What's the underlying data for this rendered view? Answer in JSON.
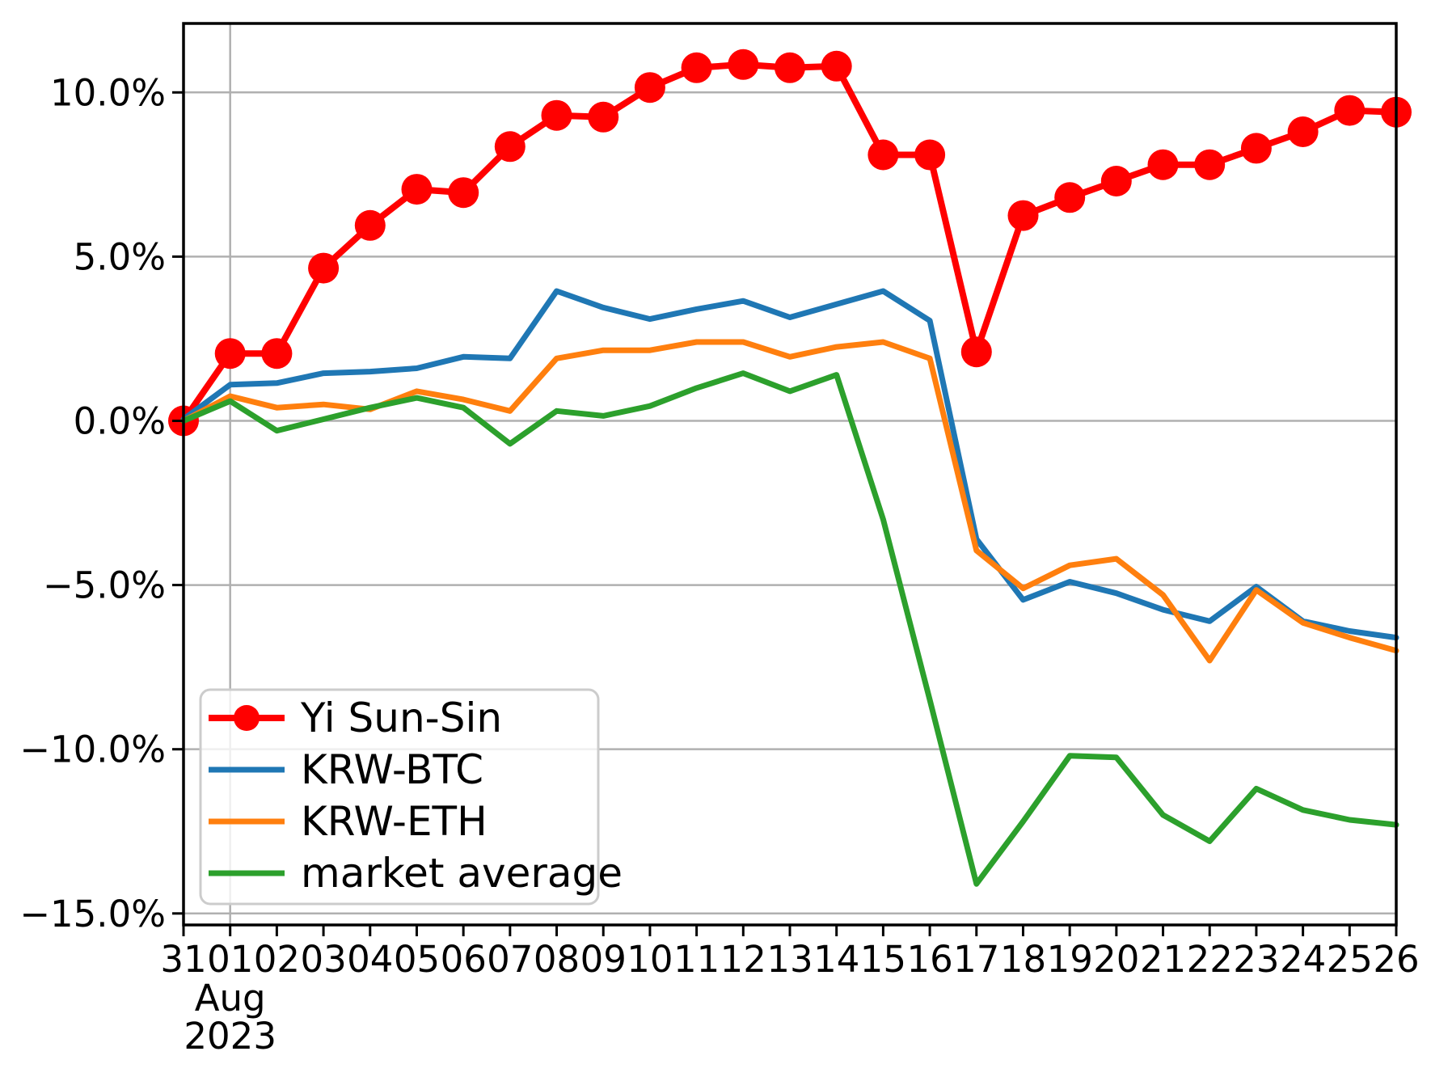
{
  "chart_data": {
    "type": "line",
    "title": "",
    "xlabel": "",
    "ylabel": "",
    "x_tick_labels": [
      "31",
      "01",
      "02",
      "03",
      "04",
      "05",
      "06",
      "07",
      "08",
      "09",
      "10",
      "11",
      "12",
      "13",
      "14",
      "15",
      "16",
      "17",
      "18",
      "19",
      "20",
      "21",
      "22",
      "23",
      "24",
      "25",
      "26"
    ],
    "x_period_label": {
      "month": "Aug",
      "year": "2023",
      "under_tick": "01"
    },
    "y_tick_labels": [
      "10.0%",
      "5.0%",
      "0.0%",
      "−5.0%",
      "−10.0%",
      "−15.0%"
    ],
    "y_tick_values": [
      10,
      5,
      0,
      -5,
      -10,
      -15
    ],
    "ylim": [
      -15.35,
      12.1
    ],
    "grid": {
      "horizontal": true,
      "vertical_at_major_tick_only": true,
      "color": "#b0b0b0"
    },
    "legend": {
      "position": "lower-left",
      "border_color": "#cccccc",
      "background": "rgba(255,255,255,0.8)"
    },
    "series": [
      {
        "name": "Yi Sun-Sin",
        "color": "#ff0000",
        "marker": "circle",
        "values": [
          0.0,
          2.05,
          2.05,
          4.65,
          5.95,
          7.05,
          6.95,
          8.35,
          9.3,
          9.25,
          10.15,
          10.75,
          10.85,
          10.75,
          10.8,
          8.1,
          8.1,
          2.1,
          6.25,
          6.8,
          7.3,
          7.8,
          7.8,
          8.3,
          8.8,
          9.45,
          9.4
        ]
      },
      {
        "name": "KRW-BTC",
        "color": "#1f77b4",
        "marker": "none",
        "values": [
          0.05,
          1.1,
          1.15,
          1.45,
          1.5,
          1.6,
          1.95,
          1.9,
          3.95,
          3.45,
          3.1,
          3.4,
          3.65,
          3.15,
          3.55,
          3.95,
          3.05,
          -3.6,
          -5.45,
          -4.9,
          -5.25,
          -5.75,
          -6.1,
          -5.05,
          -6.1,
          -6.4,
          -6.6
        ]
      },
      {
        "name": "KRW-ETH",
        "color": "#ff7f0e",
        "marker": "none",
        "values": [
          0.0,
          0.75,
          0.4,
          0.5,
          0.35,
          0.9,
          0.65,
          0.3,
          1.9,
          2.15,
          2.15,
          2.4,
          2.4,
          1.95,
          2.25,
          2.4,
          1.9,
          -3.95,
          -5.1,
          -4.4,
          -4.2,
          -5.3,
          -7.3,
          -5.15,
          -6.15,
          -6.6,
          -7.0
        ]
      },
      {
        "name": "market average",
        "color": "#2ca02c",
        "marker": "none",
        "values": [
          0.0,
          0.6,
          -0.3,
          0.05,
          0.4,
          0.7,
          0.4,
          -0.7,
          0.3,
          0.15,
          0.45,
          1.0,
          1.45,
          0.9,
          1.4,
          -3.0,
          -8.5,
          -14.1,
          -12.2,
          -10.2,
          -10.25,
          -12.0,
          -12.8,
          -11.2,
          -11.85,
          -12.15,
          -12.3
        ]
      }
    ]
  },
  "colors": {
    "background": "#ffffff",
    "axis": "#000000",
    "gridline": "#b0b0b0",
    "tick_text": "#000000"
  }
}
